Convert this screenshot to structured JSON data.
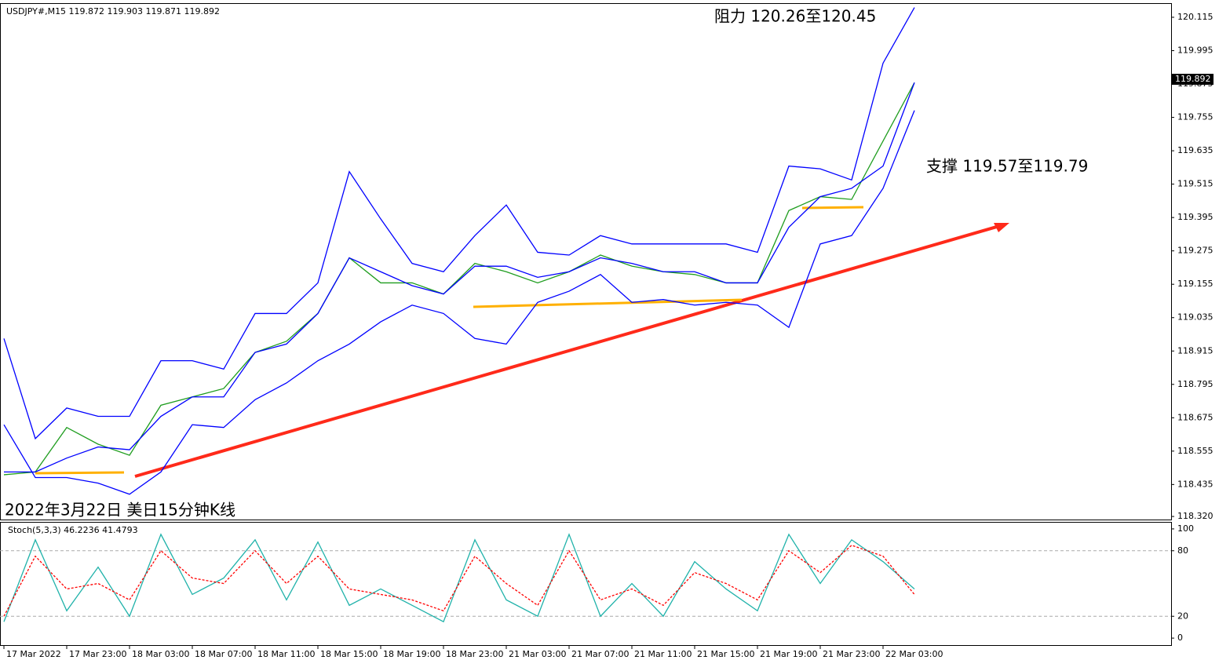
{
  "chart_data": [
    {
      "type": "line",
      "title": "USDJPY#,M15  119.872 119.903 119.871 119.892",
      "last_price": 119.892,
      "annotations": [
        "阻力 120.26至120.45",
        "支撑 119.57至119.79",
        "2022年3月22日 美日15分钟K线"
      ],
      "x": [
        0,
        8,
        16,
        24,
        32,
        40,
        48,
        56,
        64,
        72,
        80,
        88,
        96,
        104,
        112,
        120,
        128,
        136,
        144,
        152,
        160,
        168,
        176,
        184,
        192,
        200,
        208,
        216,
        224,
        232
      ],
      "xlim": [
        -1,
        297.4
      ],
      "xticks": [
        {
          "value": 0,
          "label": "17 Mar 2022"
        },
        {
          "value": 16,
          "label": "17 Mar 23:00"
        },
        {
          "value": 32,
          "label": "18 Mar 03:00"
        },
        {
          "value": 48,
          "label": "18 Mar 07:00"
        },
        {
          "value": 64,
          "label": "18 Mar 11:00"
        },
        {
          "value": 80,
          "label": "18 Mar 15:00"
        },
        {
          "value": 96,
          "label": "18 Mar 19:00"
        },
        {
          "value": 112,
          "label": "18 Mar 23:00"
        },
        {
          "value": 128,
          "label": "21 Mar 03:00"
        },
        {
          "value": 144,
          "label": "21 Mar 07:00"
        },
        {
          "value": 160,
          "label": "21 Mar 11:00"
        },
        {
          "value": 176,
          "label": "21 Mar 15:00"
        },
        {
          "value": 192,
          "label": "21 Mar 19:00"
        },
        {
          "value": 208,
          "label": "21 Mar 23:00"
        },
        {
          "value": 224,
          "label": "22 Mar 03:00"
        }
      ],
      "ylim": [
        118.309,
        120.163
      ],
      "yticks": [
        {
          "value": 118.32,
          "label": "118.320"
        },
        {
          "value": 118.435,
          "label": "118.435"
        },
        {
          "value": 118.555,
          "label": "118.555"
        },
        {
          "value": 118.675,
          "label": "118.675"
        },
        {
          "value": 118.795,
          "label": "118.795"
        },
        {
          "value": 118.915,
          "label": "118.915"
        },
        {
          "value": 119.035,
          "label": "119.035"
        },
        {
          "value": 119.155,
          "label": "119.155"
        },
        {
          "value": 119.275,
          "label": "119.275"
        },
        {
          "value": 119.395,
          "label": "119.395"
        },
        {
          "value": 119.515,
          "label": "119.515"
        },
        {
          "value": 119.635,
          "label": "119.635"
        },
        {
          "value": 119.755,
          "label": "119.755"
        },
        {
          "value": 119.875,
          "label": "119.875"
        },
        {
          "value": 119.995,
          "label": "119.995"
        },
        {
          "value": 120.115,
          "label": "120.115"
        }
      ],
      "series": [
        {
          "color": "#1f9d1f",
          "values": [
            118.47,
            118.48,
            118.64,
            118.58,
            118.54,
            118.72,
            118.75,
            118.78,
            118.91,
            118.95,
            119.05,
            119.25,
            119.16,
            119.16,
            119.12,
            119.23,
            119.2,
            119.16,
            119.2,
            119.26,
            119.22,
            119.2,
            119.19,
            119.16,
            119.16,
            119.42,
            119.47,
            119.46,
            119.67,
            119.88
          ]
        },
        {
          "color": "#0000ff",
          "values": [
            118.96,
            118.6,
            118.71,
            118.68,
            118.68,
            118.88,
            118.88,
            118.85,
            119.05,
            119.05,
            119.16,
            119.56,
            119.39,
            119.23,
            119.2,
            119.33,
            119.44,
            119.27,
            119.26,
            119.33,
            119.3,
            119.3,
            119.3,
            119.3,
            119.27,
            119.58,
            119.57,
            119.53,
            119.95,
            120.15
          ]
        },
        {
          "color": "#0000ff",
          "values": [
            118.48,
            118.48,
            118.53,
            118.57,
            118.56,
            118.68,
            118.75,
            118.75,
            118.91,
            118.94,
            119.05,
            119.25,
            119.2,
            119.15,
            119.12,
            119.22,
            119.22,
            119.18,
            119.2,
            119.25,
            119.23,
            119.2,
            119.2,
            119.16,
            119.16,
            119.36,
            119.47,
            119.5,
            119.58,
            119.88
          ]
        },
        {
          "color": "#0000ff",
          "values": [
            118.65,
            118.46,
            118.46,
            118.44,
            118.4,
            118.48,
            118.65,
            118.64,
            118.74,
            118.8,
            118.88,
            118.94,
            119.02,
            119.08,
            119.05,
            118.96,
            118.94,
            119.09,
            119.13,
            119.19,
            119.09,
            119.1,
            119.08,
            119.09,
            119.08,
            119.0,
            119.3,
            119.33,
            119.5,
            119.78
          ]
        }
      ]
    },
    {
      "type": "line",
      "title": "Stoch(5,3,3) 46.2236 41.4793",
      "x": [
        0,
        8,
        16,
        24,
        32,
        40,
        48,
        56,
        64,
        72,
        80,
        88,
        96,
        104,
        112,
        120,
        128,
        136,
        144,
        152,
        160,
        168,
        176,
        184,
        192,
        200,
        208,
        216,
        224,
        232
      ],
      "ylim": [
        -6.4,
        105.7
      ],
      "yticks": [
        0,
        20,
        80,
        100
      ],
      "grid_values": [
        20,
        80
      ],
      "series": [
        {
          "color": "#20b2aa",
          "values": [
            15,
            90,
            25,
            65,
            20,
            95,
            40,
            55,
            90,
            35,
            88,
            30,
            45,
            30,
            15,
            90,
            35,
            20,
            95,
            20,
            50,
            20,
            70,
            45,
            25,
            95,
            50,
            90,
            70,
            45
          ]
        },
        {
          "color": "#ff0000",
          "dashed": true,
          "values": [
            20,
            75,
            45,
            50,
            35,
            80,
            55,
            50,
            80,
            50,
            75,
            45,
            40,
            35,
            25,
            75,
            50,
            30,
            80,
            35,
            45,
            30,
            60,
            50,
            35,
            80,
            60,
            85,
            75,
            40
          ]
        }
      ]
    }
  ]
}
